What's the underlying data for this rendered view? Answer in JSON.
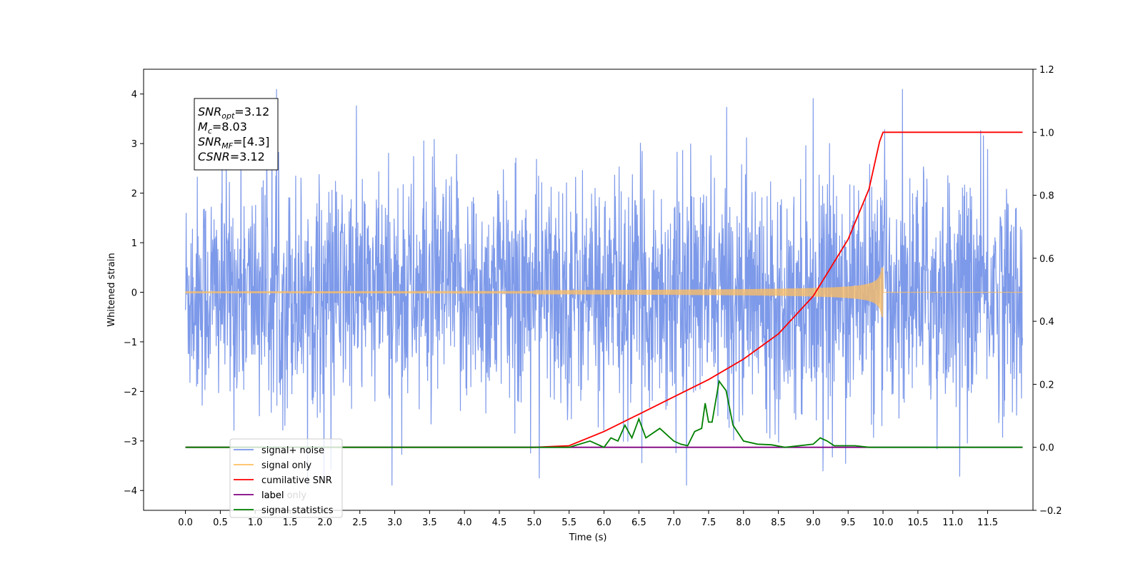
{
  "chart_data": {
    "type": "line",
    "xlabel": "Time (s)",
    "ylabel": "Whitened strain",
    "xlim": [
      -0.6,
      12.15
    ],
    "ylim": [
      -4.4,
      4.5
    ],
    "y2lim": [
      -0.2,
      1.2
    ],
    "x_ticks": [
      "0.0",
      "0.5",
      "1.0",
      "1.5",
      "2.0",
      "2.5",
      "3.0",
      "3.5",
      "4.0",
      "4.5",
      "5.0",
      "5.5",
      "6.0",
      "6.5",
      "7.0",
      "7.5",
      "8.0",
      "8.5",
      "9.0",
      "9.5",
      "10.0",
      "10.5",
      "11.0",
      "11.5"
    ],
    "y_ticks": [
      "−4",
      "−3",
      "−2",
      "−1",
      "0",
      "1",
      "2",
      "3",
      "4"
    ],
    "y2_ticks": [
      "−0.2",
      "0.0",
      "0.2",
      "0.4",
      "0.6",
      "0.8",
      "1.0",
      "1.2"
    ],
    "annotation": [
      {
        "base": "SNR",
        "sub": "opt",
        "rest": "=3.12"
      },
      {
        "base": "M",
        "sub": "c",
        "rest": "=8.03"
      },
      {
        "base": "SNR",
        "sub": "MF",
        "rest": "=[4.3]"
      },
      {
        "base": "CSNR",
        "sub": "",
        "rest": "=3.12"
      }
    ],
    "legend_position": "lower-left",
    "series": [
      {
        "name": "signal+ noise",
        "color": "#7694e8",
        "kind": "noise",
        "axis": "left",
        "x_range": [
          0,
          12
        ],
        "y_band": [
          -3.9,
          4.1
        ]
      },
      {
        "name": "signal only",
        "color": "#ffbf60",
        "kind": "chirp",
        "axis": "left",
        "x_range": [
          0,
          12
        ],
        "merger_x": 10.0,
        "peak_amplitude": 0.5
      },
      {
        "name": "cumilative SNR",
        "color": "#ff0000",
        "kind": "line",
        "axis": "right",
        "x": [
          0,
          5.0,
          5.5,
          6.0,
          6.5,
          7.0,
          7.5,
          8.0,
          8.5,
          9.0,
          9.5,
          9.8,
          9.95,
          10.0,
          11.5,
          12.0
        ],
        "y": [
          0.0,
          0.0,
          0.005,
          0.05,
          0.105,
          0.16,
          0.215,
          0.28,
          0.36,
          0.48,
          0.66,
          0.82,
          0.97,
          1.0,
          1.0,
          1.0
        ]
      },
      {
        "name": "label",
        "color": "#800080",
        "kind": "line",
        "axis": "right",
        "x": [
          0,
          12
        ],
        "y": [
          0.0,
          0.0
        ]
      },
      {
        "name": "label only",
        "color": "#d8d8d8",
        "kind": "none",
        "axis": "right"
      },
      {
        "name": "signal statistics",
        "color": "#008000",
        "kind": "line",
        "axis": "right",
        "x": [
          0,
          5.5,
          5.8,
          6.0,
          6.1,
          6.2,
          6.3,
          6.4,
          6.5,
          6.6,
          6.8,
          6.9,
          7.0,
          7.1,
          7.2,
          7.3,
          7.4,
          7.45,
          7.5,
          7.55,
          7.65,
          7.75,
          7.85,
          8.0,
          8.2,
          8.4,
          8.6,
          9.0,
          9.1,
          9.2,
          9.3,
          9.6,
          9.8,
          12.0
        ],
        "y": [
          0.0,
          0.0,
          0.02,
          0.0,
          0.03,
          0.02,
          0.07,
          0.03,
          0.09,
          0.03,
          0.06,
          0.04,
          0.02,
          0.01,
          0.005,
          0.05,
          0.06,
          0.14,
          0.08,
          0.08,
          0.21,
          0.18,
          0.07,
          0.02,
          0.01,
          0.008,
          0.0,
          0.01,
          0.03,
          0.02,
          0.005,
          0.005,
          0.0,
          0.0
        ]
      }
    ]
  }
}
